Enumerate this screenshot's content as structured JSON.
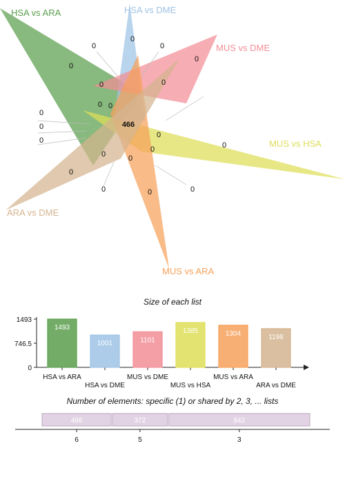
{
  "colors": {
    "HSA vs ARA": "#5a9e4c",
    "HSA vs DME": "#9ec3e6",
    "MUS vs DME": "#f28e96",
    "MUS vs HSA": "#dede58",
    "MUS vs ARA": "#f7a15a",
    "ARA vs DME": "#d4b48f",
    "shared_bar": "#e2d3e4",
    "shared_border": "#b9a6bd"
  },
  "venn": {
    "sets": [
      "HSA vs ARA",
      "HSA vs DME",
      "MUS vs DME",
      "MUS vs HSA",
      "MUS vs ARA",
      "ARA vs DME"
    ],
    "center_value": "466",
    "region_values": [
      "0",
      "0",
      "0",
      "0",
      "0",
      "0",
      "0",
      "0",
      "0",
      "0",
      "0",
      "0",
      "0",
      "0",
      "0",
      "0",
      "0",
      "0",
      "0",
      "0",
      "0"
    ]
  },
  "chart_data": [
    {
      "type": "bar",
      "title": "Size of each list",
      "categories": [
        "HSA vs ARA",
        "HSA vs DME",
        "MUS vs DME",
        "MUS vs HSA",
        "MUS vs ARA",
        "ARA vs DME"
      ],
      "values": [
        1493,
        1001,
        1101,
        1385,
        1304,
        1198
      ],
      "yticks": [
        "0",
        "746.5",
        "1493"
      ],
      "ylim": [
        0,
        1493
      ]
    },
    {
      "type": "bar",
      "orientation": "horizontal-stacked",
      "title": "Number of elements: specific (1) or shared by 2, 3, ... lists",
      "categories": [
        "6",
        "5",
        "3"
      ],
      "values": [
        466,
        372,
        942
      ]
    }
  ]
}
